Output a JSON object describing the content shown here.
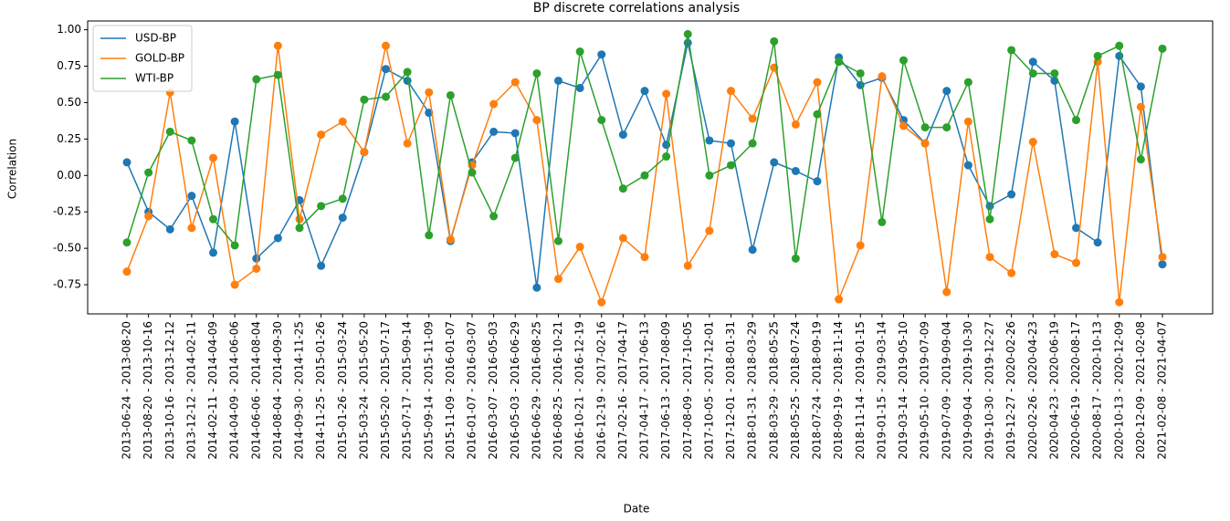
{
  "chart_data": {
    "type": "line",
    "title": "BP discrete correlations analysis",
    "x_label": "Date",
    "y_label": "Correlation",
    "categories": [
      "2013-06-24 - 2013-08-20",
      "2013-08-20 - 2013-10-16",
      "2013-10-16 - 2013-12-12",
      "2013-12-12 - 2014-02-11",
      "2014-02-11 - 2014-04-09",
      "2014-04-09 - 2014-06-06",
      "2014-06-06 - 2014-08-04",
      "2014-08-04 - 2014-09-30",
      "2014-09-30 - 2014-11-25",
      "2014-11-25 - 2015-01-26",
      "2015-01-26 - 2015-03-24",
      "2015-03-24 - 2015-05-20",
      "2015-05-20 - 2015-07-17",
      "2015-07-17 - 2015-09-14",
      "2015-09-14 - 2015-11-09",
      "2015-11-09 - 2016-01-07",
      "2016-01-07 - 2016-03-07",
      "2016-03-07 - 2016-05-03",
      "2016-05-03 - 2016-06-29",
      "2016-06-29 - 2016-08-25",
      "2016-08-25 - 2016-10-21",
      "2016-10-21 - 2016-12-19",
      "2016-12-19 - 2017-02-16",
      "2017-02-16 - 2017-04-17",
      "2017-04-17 - 2017-06-13",
      "2017-06-13 - 2017-08-09",
      "2017-08-09 - 2017-10-05",
      "2017-10-05 - 2017-12-01",
      "2017-12-01 - 2018-01-31",
      "2018-01-31 - 2018-03-29",
      "2018-03-29 - 2018-05-25",
      "2018-05-25 - 2018-07-24",
      "2018-07-24 - 2018-09-19",
      "2018-09-19 - 2018-11-14",
      "2018-11-14 - 2019-01-15",
      "2019-01-15 - 2019-03-14",
      "2019-03-14 - 2019-05-10",
      "2019-05-10 - 2019-07-09",
      "2019-07-09 - 2019-09-04",
      "2019-09-04 - 2019-10-30",
      "2019-10-30 - 2019-12-27",
      "2019-12-27 - 2020-02-26",
      "2020-02-26 - 2020-04-23",
      "2020-04-23 - 2020-06-19",
      "2020-06-19 - 2020-08-17",
      "2020-08-17 - 2020-10-13",
      "2020-10-13 - 2020-12-09",
      "2020-12-09 - 2021-02-08",
      "2021-02-08 - 2021-04-07"
    ],
    "series": [
      {
        "name": "USD-BP",
        "color": "#1f77b4",
        "values": [
          0.09,
          -0.25,
          -0.37,
          -0.14,
          -0.53,
          0.37,
          -0.57,
          -0.43,
          -0.17,
          -0.62,
          -0.29,
          0.16,
          0.73,
          0.65,
          0.43,
          -0.45,
          0.09,
          0.3,
          0.29,
          -0.77,
          0.65,
          0.6,
          0.83,
          0.28,
          0.58,
          0.21,
          0.91,
          0.24,
          0.22,
          -0.51,
          0.09,
          0.03,
          -0.04,
          0.81,
          0.62,
          0.67,
          0.38,
          0.22,
          0.58,
          0.07,
          -0.21,
          -0.13,
          0.78,
          0.65,
          -0.36,
          -0.46,
          0.82,
          0.61,
          -0.61
        ]
      },
      {
        "name": "GOLD-BP",
        "color": "#ff7f0e",
        "values": [
          -0.66,
          -0.28,
          0.57,
          -0.36,
          0.12,
          -0.75,
          -0.64,
          0.89,
          -0.3,
          0.28,
          0.37,
          0.16,
          0.89,
          0.22,
          0.57,
          -0.44,
          0.07,
          0.49,
          0.64,
          0.38,
          -0.71,
          -0.49,
          -0.87,
          -0.43,
          -0.56,
          0.56,
          -0.62,
          -0.38,
          0.58,
          0.39,
          0.74,
          0.35,
          0.64,
          -0.85,
          -0.48,
          0.68,
          0.34,
          0.22,
          -0.8,
          0.37,
          -0.56,
          -0.67,
          0.23,
          -0.54,
          -0.6,
          0.78,
          -0.87,
          0.47,
          -0.56
        ]
      },
      {
        "name": "WTI-BP",
        "color": "#2ca02c",
        "values": [
          -0.46,
          0.02,
          0.3,
          0.24,
          -0.3,
          -0.48,
          0.66,
          0.69,
          -0.36,
          -0.21,
          -0.16,
          0.52,
          0.54,
          0.71,
          -0.41,
          0.55,
          0.02,
          -0.28,
          0.12,
          0.7,
          -0.45,
          0.85,
          0.38,
          -0.09,
          0.0,
          0.13,
          0.97,
          0.0,
          0.07,
          0.22,
          0.92,
          -0.57,
          0.42,
          0.78,
          0.7,
          -0.32,
          0.79,
          0.33,
          0.33,
          0.64,
          -0.3,
          0.86,
          0.7,
          0.7,
          0.38,
          0.82,
          0.89,
          0.11,
          0.87
        ]
      }
    ],
    "ylim": [
      -0.95,
      1.06
    ],
    "yticks": [
      {
        "value": -0.75,
        "label": "-0.75"
      },
      {
        "value": -0.5,
        "label": "-0.50"
      },
      {
        "value": -0.25,
        "label": "-0.25"
      },
      {
        "value": 0,
        "label": "0.00"
      },
      {
        "value": 0.25,
        "label": "0.25"
      },
      {
        "value": 0.5,
        "label": "0.50"
      },
      {
        "value": 0.75,
        "label": "0.75"
      },
      {
        "value": 1,
        "label": "1.00"
      }
    ],
    "legend": "upper left"
  }
}
